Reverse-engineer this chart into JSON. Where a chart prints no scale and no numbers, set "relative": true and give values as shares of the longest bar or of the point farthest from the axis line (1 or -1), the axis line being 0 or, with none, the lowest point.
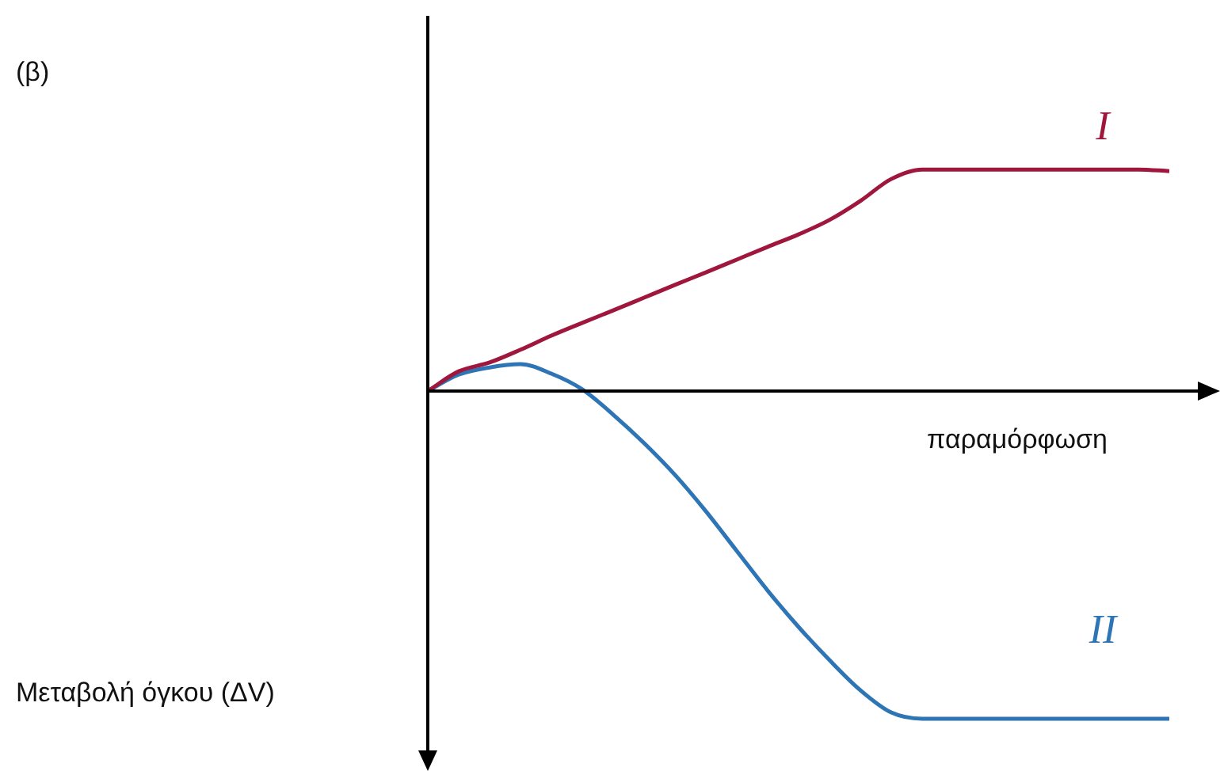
{
  "chart_data": {
    "type": "line",
    "relative": true,
    "title": "(β)",
    "xlabel": "παραμόρφωση",
    "annotations": [
      "Μεταβολή όγκου (ΔV)"
    ],
    "categories": [
      null,
      null,
      null,
      null,
      null,
      null,
      null,
      null,
      null,
      null,
      null,
      null,
      null,
      null,
      null,
      null,
      null,
      null,
      null,
      null,
      null,
      null,
      null,
      null,
      null
    ],
    "series": [
      {
        "name": "I",
        "color": "#a0173e",
        "values": [
          0,
          0.06,
          0.087,
          0.126,
          0.169,
          0.208,
          0.246,
          0.285,
          0.324,
          0.362,
          0.401,
          0.44,
          0.478,
          0.522,
          0.58,
          0.647,
          0.676,
          0.676,
          0.676,
          0.676,
          0.676,
          0.676,
          0.676,
          0.676,
          0.671
        ]
      },
      {
        "name": "II",
        "color": "#2e75b6",
        "values": [
          0,
          0.05,
          0.072,
          0.082,
          0.053,
          0.005,
          -0.072,
          -0.159,
          -0.256,
          -0.367,
          -0.488,
          -0.609,
          -0.72,
          -0.821,
          -0.913,
          -0.981,
          -1,
          -1,
          -1,
          -1,
          -1,
          -1,
          -1,
          -1,
          -1
        ]
      }
    ]
  }
}
